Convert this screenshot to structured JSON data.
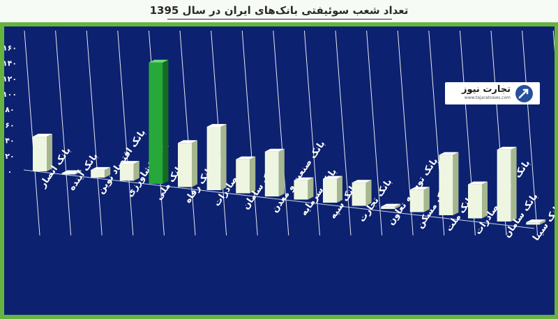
{
  "header": {
    "title": "تعداد شعب سوئیفتی بانک‌های ایران در سال 1395"
  },
  "logo": {
    "name": "تجارت نیوز",
    "subtitle": "www.tejaratnews.com",
    "icon": "tejaratnews-logo-icon"
  },
  "colors": {
    "page_background": "#67b33f",
    "plot_background": "#0c2170",
    "bar_default": "#eef6e2",
    "bar_highlight": "#27a83a"
  },
  "chart_data": {
    "type": "bar",
    "title": "تعداد شعب سوئیفتی بانک‌های ایران در سال 1395",
    "xlabel": "",
    "ylabel": "",
    "ylim": [
      0,
      160
    ],
    "ytick_labels": [
      "۰",
      "۲۰",
      "۴۰",
      "۶۰",
      "۸۰",
      "۱۰۰",
      "۱۲۰",
      "۱۴۰",
      "۱۶۰"
    ],
    "grid": false,
    "style": "3d-columns",
    "categories": [
      "بانک انصار",
      "بانک آینده",
      "بانک اقتصاد نوین",
      "بانک کشاورزی",
      "بانک ملی",
      "بانک رفاه",
      "بانک صادرات",
      "بانک سامان",
      "بانک صنعت و معدن",
      "بانک سرمایه",
      "بانک سپه",
      "بانک تجارت",
      "بانک توسعه تعاون",
      "بانک مسکن",
      "بانک ملت",
      "بانک توسعه صادرات",
      "بانک سامان",
      "بانک سینا"
    ],
    "values": [
      45,
      1,
      10,
      22,
      157,
      57,
      82,
      44,
      58,
      25,
      31,
      30,
      3,
      29,
      78,
      44,
      93,
      3
    ],
    "highlight_index": 4
  }
}
